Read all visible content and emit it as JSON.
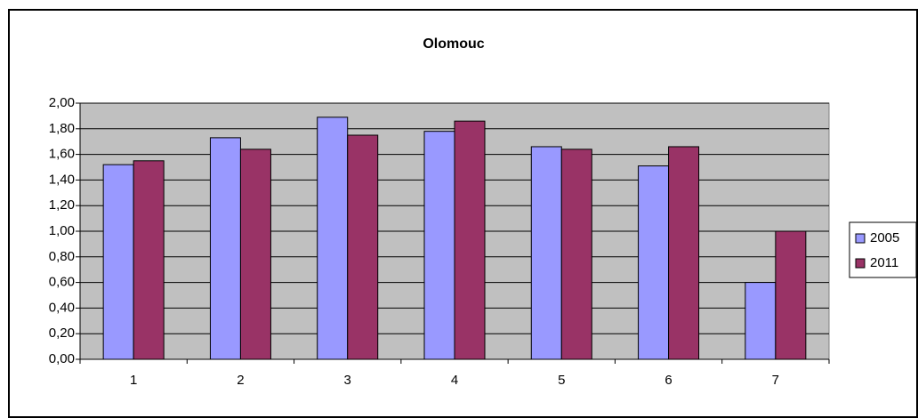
{
  "chart_data": {
    "type": "bar",
    "title": "Olomouc",
    "categories": [
      "1",
      "2",
      "3",
      "4",
      "5",
      "6",
      "7"
    ],
    "series": [
      {
        "name": "2005",
        "color": "#9999ff",
        "values": [
          1.52,
          1.73,
          1.89,
          1.78,
          1.66,
          1.51,
          0.6
        ]
      },
      {
        "name": "2011",
        "color": "#993366",
        "values": [
          1.55,
          1.64,
          1.75,
          1.86,
          1.64,
          1.66,
          1.0
        ]
      }
    ],
    "ylim": [
      0,
      2
    ],
    "yticks": [
      {
        "value": 0,
        "label": "0,00"
      },
      {
        "value": 0.2,
        "label": "0,20"
      },
      {
        "value": 0.4,
        "label": "0,40"
      },
      {
        "value": 0.6,
        "label": "0,60"
      },
      {
        "value": 0.8,
        "label": "0,80"
      },
      {
        "value": 1.0,
        "label": "1,00"
      },
      {
        "value": 1.2,
        "label": "1,20"
      },
      {
        "value": 1.4,
        "label": "1,40"
      },
      {
        "value": 1.6,
        "label": "1,60"
      },
      {
        "value": 1.8,
        "label": "1,80"
      },
      {
        "value": 2.0,
        "label": "2,00"
      }
    ],
    "grid": true,
    "legend": "right",
    "plot_background": "#c0c0c0"
  }
}
